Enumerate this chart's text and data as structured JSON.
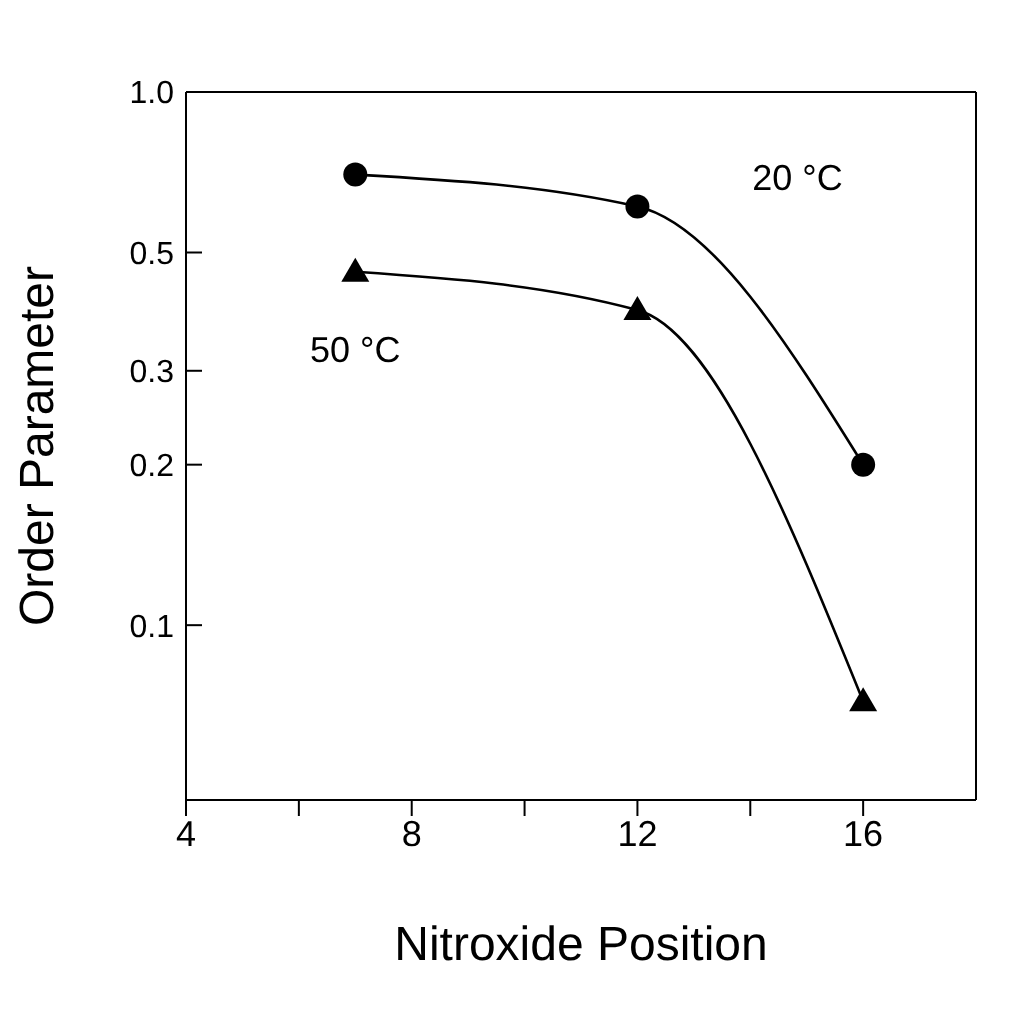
{
  "chart_data": {
    "type": "line",
    "xlabel": "Nitroxide Position",
    "ylabel": "Order Parameter",
    "x": [
      7,
      12,
      16
    ],
    "series": [
      {
        "name": "20 °C",
        "color": "#000000",
        "marker": "circle",
        "values": [
          0.7,
          0.61,
          0.2
        ]
      },
      {
        "name": "50 °C",
        "color": "#000000",
        "marker": "triangle",
        "values": [
          0.46,
          0.39,
          0.072
        ]
      }
    ],
    "xlim": [
      4,
      18
    ],
    "xticks": [
      4,
      {
        "value": 6,
        "label": null
      },
      8,
      {
        "value": 10,
        "label": null
      },
      12,
      {
        "value": 14,
        "label": null
      },
      16
    ],
    "ylim": [
      0.047,
      1
    ],
    "yticks": [
      {
        "value": 1,
        "label": "1.0"
      },
      0.5,
      0.3,
      0.2,
      0.1
    ],
    "log": "y",
    "line_style": "solid"
  }
}
